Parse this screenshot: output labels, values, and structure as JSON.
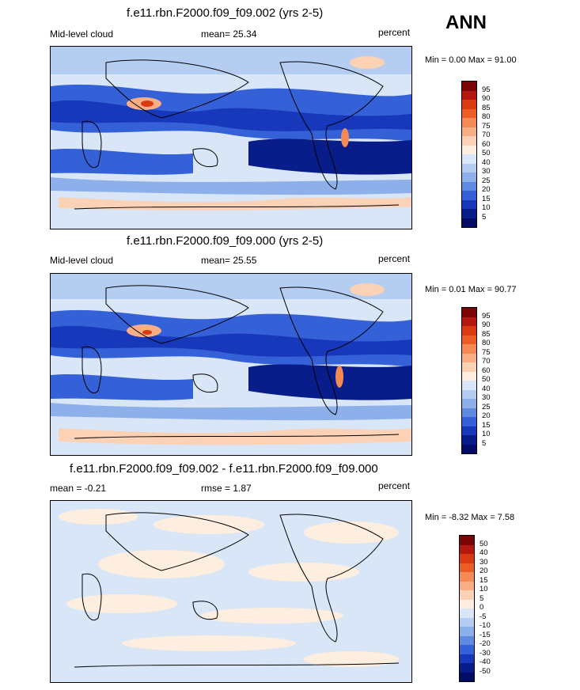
{
  "season": "ANN",
  "panels": [
    {
      "title": "f.e11.rbn.F2000.f09_f09.002 (yrs 2-5)",
      "left_label": "Mid-level cloud",
      "center_label": "mean=  25.34",
      "right_label": "percent",
      "minmax": "Min =   0.00 Max =  91.00",
      "colorbar": [
        "95",
        "90",
        "85",
        "80",
        "75",
        "70",
        "60",
        "50",
        "40",
        "30",
        "25",
        "20",
        "15",
        "10",
        "5"
      ]
    },
    {
      "title": "f.e11.rbn.F2000.f09_f09.000 (yrs 2-5)",
      "left_label": "Mid-level cloud",
      "center_label": "mean=  25.55",
      "right_label": "percent",
      "minmax": "Min =   0.01 Max =  90.77",
      "colorbar": [
        "95",
        "90",
        "85",
        "80",
        "75",
        "70",
        "60",
        "50",
        "40",
        "30",
        "25",
        "20",
        "15",
        "10",
        "5"
      ]
    },
    {
      "title": "f.e11.rbn.F2000.f09_f09.002 - f.e11.rbn.F2000.f09_f09.000",
      "left_label": "mean =  -0.21",
      "center_label": "rmse =   1.87",
      "right_label": "percent",
      "minmax": "Min =  -8.32 Max =   7.58",
      "colorbar": [
        "50",
        "40",
        "30",
        "20",
        "15",
        "10",
        "5",
        "0",
        "-5",
        "-10",
        "-15",
        "-20",
        "-30",
        "-40",
        "-50"
      ]
    }
  ],
  "colors": {
    "scale": [
      "#7a0403",
      "#b2180e",
      "#d93a12",
      "#ec5c25",
      "#f58a55",
      "#f9ae86",
      "#fcd2b6",
      "#fdeedf",
      "#d8e6f7",
      "#b4cdf0",
      "#8db0ea",
      "#5f8ae1",
      "#3561d8",
      "#1838bb",
      "#081d8a",
      "#020c66"
    ]
  }
}
